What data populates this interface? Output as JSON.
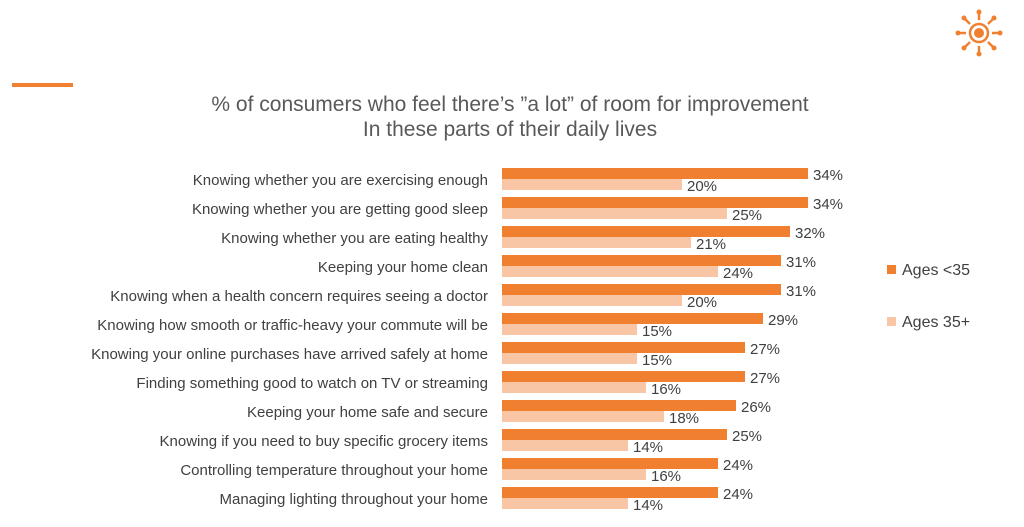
{
  "colors": {
    "accent": "#F08030",
    "series_young": "#F08030",
    "series_old": "#F8C6A4"
  },
  "logo_icon": "sun-dial-icon",
  "chart_data": {
    "type": "bar",
    "orientation": "horizontal",
    "title": [
      "% of consumers who feel there’s ”a lot” of room for improvement",
      "In these parts of their daily lives"
    ],
    "categories": [
      "Knowing whether you are exercising enough",
      "Knowing whether you are getting good sleep",
      "Knowing whether you are eating healthy",
      "Keeping your home clean",
      "Knowing when a health concern requires seeing a doctor",
      "Knowing how smooth or traffic-heavy your commute will be",
      "Knowing your online purchases have arrived safely at home",
      "Finding something good to watch on TV or streaming",
      "Keeping your home safe and secure",
      "Knowing if you need to buy specific grocery items",
      "Controlling temperature throughout your home",
      "Managing lighting throughout your home"
    ],
    "series": [
      {
        "name": "Ages <35",
        "values": [
          34,
          34,
          32,
          31,
          31,
          29,
          27,
          27,
          26,
          25,
          24,
          24
        ]
      },
      {
        "name": "Ages 35+",
        "values": [
          20,
          25,
          21,
          24,
          20,
          15,
          15,
          16,
          18,
          14,
          16,
          14
        ]
      }
    ],
    "value_suffix": "%",
    "xlim": [
      0,
      40
    ],
    "grid": false,
    "legend_position": "right"
  }
}
